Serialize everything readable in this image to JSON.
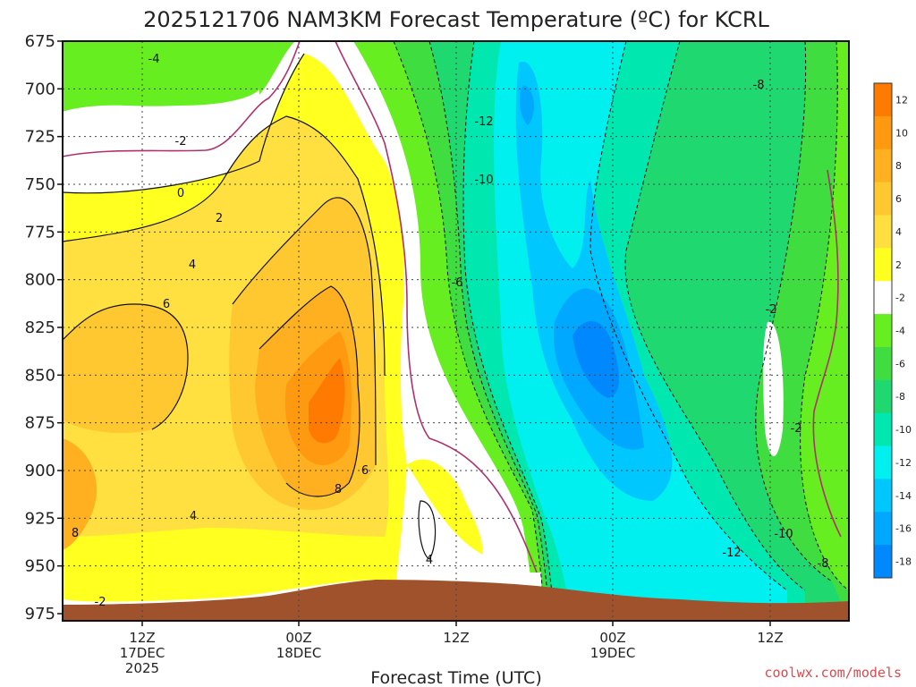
{
  "chart_data": {
    "type": "heatmap",
    "title": "2025121706 NAM3KM Forecast Temperature (ºC) for KCRL",
    "xlabel": "Forecast Time (UTC)",
    "y_ticks": [
      "675",
      "700",
      "725",
      "750",
      "775",
      "800",
      "825",
      "850",
      "875",
      "900",
      "925",
      "950",
      "975"
    ],
    "ylim": [
      975,
      675
    ],
    "x_ticks": [
      {
        "line1": "12Z",
        "line2": "17DEC",
        "line3": "2025"
      },
      {
        "line1": "00Z",
        "line2": "18DEC",
        "line3": ""
      },
      {
        "line1": "12Z",
        "line2": "",
        "line3": ""
      },
      {
        "line1": "00Z",
        "line2": "19DEC",
        "line3": ""
      },
      {
        "line1": "12Z",
        "line2": "",
        "line3": ""
      }
    ],
    "colorbar": {
      "levels": [
        "12",
        "10",
        "8",
        "6",
        "4",
        "2",
        "-2",
        "-4",
        "-6",
        "-8",
        "-10",
        "-12",
        "-14",
        "-16",
        "-18"
      ],
      "colors": [
        "#ff7a00",
        "#ff9a10",
        "#ffb020",
        "#ffc830",
        "#ffe040",
        "#ffff20",
        "#ffffff",
        "#66ee20",
        "#40dd40",
        "#20d870",
        "#00e8b0",
        "#00f0f0",
        "#00c8ff",
        "#00a8ff",
        "#0088ff"
      ]
    },
    "contour_labels": [
      "-4",
      "-2",
      "0",
      "2",
      "4",
      "6",
      "8",
      "6",
      "4",
      "-2",
      "4",
      "8",
      "-12",
      "-10",
      "-6",
      "-8",
      "-2",
      "-2",
      "-12",
      "-10",
      "-8"
    ],
    "grid": true,
    "terrain_color": "#a0522d"
  },
  "credit": "coolwx.com/models"
}
